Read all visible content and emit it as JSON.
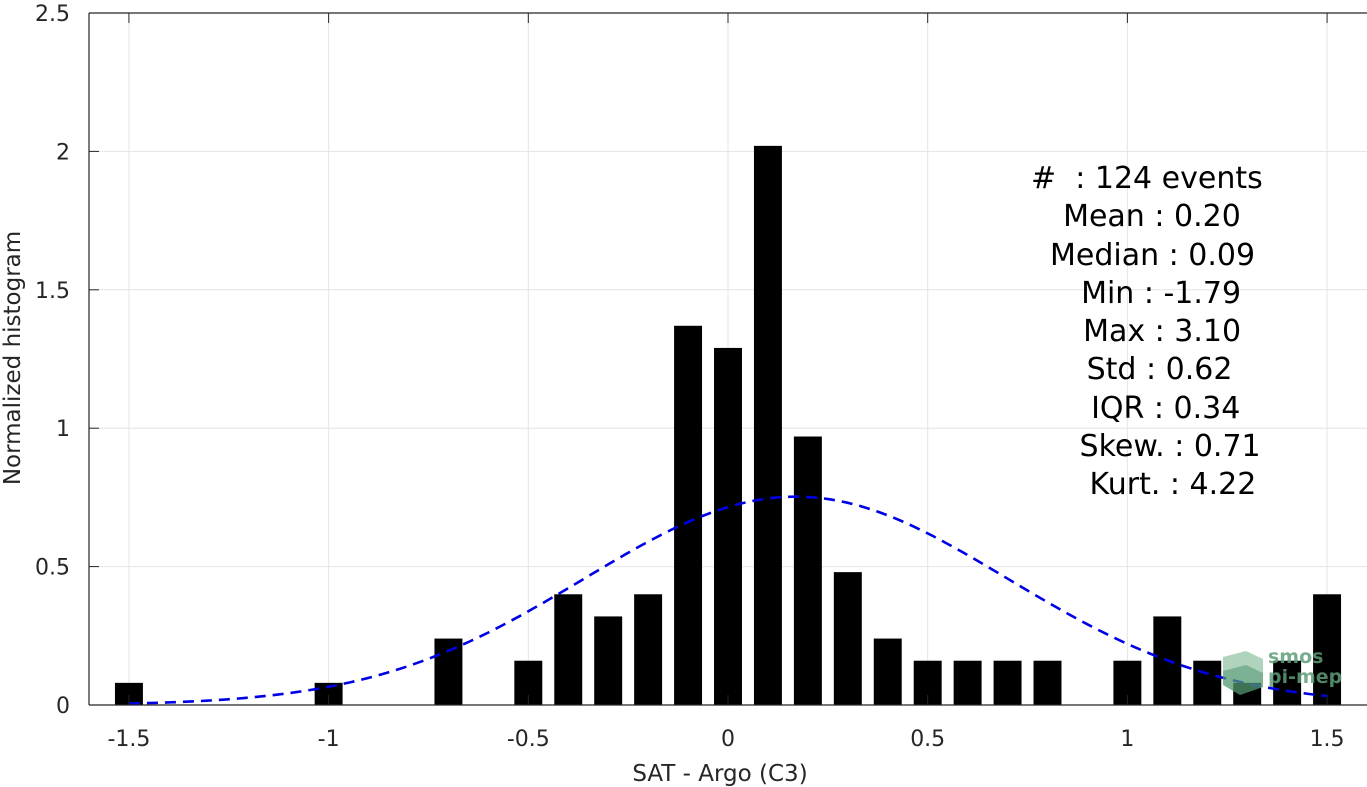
{
  "chart_data": {
    "type": "bar",
    "xlabel": "SAT - Argo (C3)",
    "ylabel": "Normalized histogram",
    "xlim": [
      -1.6,
      1.6
    ],
    "ylim": [
      0,
      2.5
    ],
    "grid": true,
    "x_ticks": [
      -1.5,
      -1,
      -0.5,
      0,
      0.5,
      1,
      1.5
    ],
    "x_tick_labels": [
      "-1.5",
      "-1",
      "-0.5",
      "0",
      "0.5",
      "1",
      "1.5"
    ],
    "y_ticks": [
      0,
      0.5,
      1,
      1.5,
      2,
      2.5
    ],
    "y_tick_labels": [
      "0",
      "0.5",
      "1",
      "1.5",
      "2",
      "2.5"
    ],
    "bar_width": 0.07,
    "bars": [
      {
        "x": -1.5,
        "value": 0.08
      },
      {
        "x": -1.0,
        "value": 0.08
      },
      {
        "x": -0.7,
        "value": 0.24
      },
      {
        "x": -0.5,
        "value": 0.16
      },
      {
        "x": -0.4,
        "value": 0.4
      },
      {
        "x": -0.3,
        "value": 0.32
      },
      {
        "x": -0.2,
        "value": 0.4
      },
      {
        "x": -0.1,
        "value": 1.37
      },
      {
        "x": 0.0,
        "value": 1.29
      },
      {
        "x": 0.1,
        "value": 2.02
      },
      {
        "x": 0.2,
        "value": 0.97
      },
      {
        "x": 0.3,
        "value": 0.48
      },
      {
        "x": 0.4,
        "value": 0.24
      },
      {
        "x": 0.5,
        "value": 0.16
      },
      {
        "x": 0.6,
        "value": 0.16
      },
      {
        "x": 0.7,
        "value": 0.16
      },
      {
        "x": 0.8,
        "value": 0.16
      },
      {
        "x": 1.0,
        "value": 0.16
      },
      {
        "x": 1.1,
        "value": 0.32
      },
      {
        "x": 1.2,
        "value": 0.16
      },
      {
        "x": 1.3,
        "value": 0.08
      },
      {
        "x": 1.4,
        "value": 0.16
      },
      {
        "x": 1.5,
        "value": 0.4
      }
    ],
    "fit_curve": {
      "style": "dashed",
      "color": "#0000e6",
      "mean": 0.17,
      "std": 0.53,
      "x_range": [
        -1.5,
        1.5
      ]
    },
    "bar_color": "#000000",
    "stats_lines": [
      "#  : 124 events",
      "  Mean : 0.20",
      "Median : 0.09",
      "  Min : -1.79",
      "  Max : 3.10",
      "   Std : 0.62",
      "  IQR : 0.34",
      " Skew. : 0.71",
      " Kurt. : 4.22"
    ]
  },
  "watermark": {
    "line1": "smos",
    "line2": "pi-mep",
    "color": "#5d9e77"
  }
}
